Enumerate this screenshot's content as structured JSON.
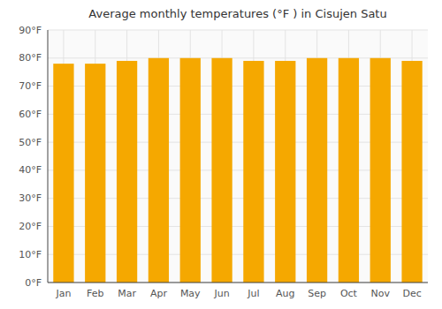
{
  "chart_data": {
    "type": "bar",
    "title": "Average monthly temperatures (°F ) in Cisujen Satu",
    "categories": [
      "Jan",
      "Feb",
      "Mar",
      "Apr",
      "May",
      "Jun",
      "Jul",
      "Aug",
      "Sep",
      "Oct",
      "Nov",
      "Dec"
    ],
    "values": [
      78,
      78,
      79,
      80,
      80,
      80,
      79,
      79,
      80,
      80,
      80,
      79
    ],
    "color": "#F5A800",
    "ylim": [
      0,
      90
    ],
    "yticks": [
      {
        "value": 0,
        "label": "0°F"
      },
      {
        "value": 10,
        "label": "10°F"
      },
      {
        "value": 20,
        "label": "20°F"
      },
      {
        "value": 30,
        "label": "30°F"
      },
      {
        "value": 40,
        "label": "40°F"
      },
      {
        "value": 50,
        "label": "50°F"
      },
      {
        "value": 60,
        "label": "60°F"
      },
      {
        "value": 70,
        "label": "70°F"
      },
      {
        "value": 80,
        "label": "80°F"
      },
      {
        "value": 90,
        "label": "90°F"
      }
    ],
    "grid": true
  }
}
